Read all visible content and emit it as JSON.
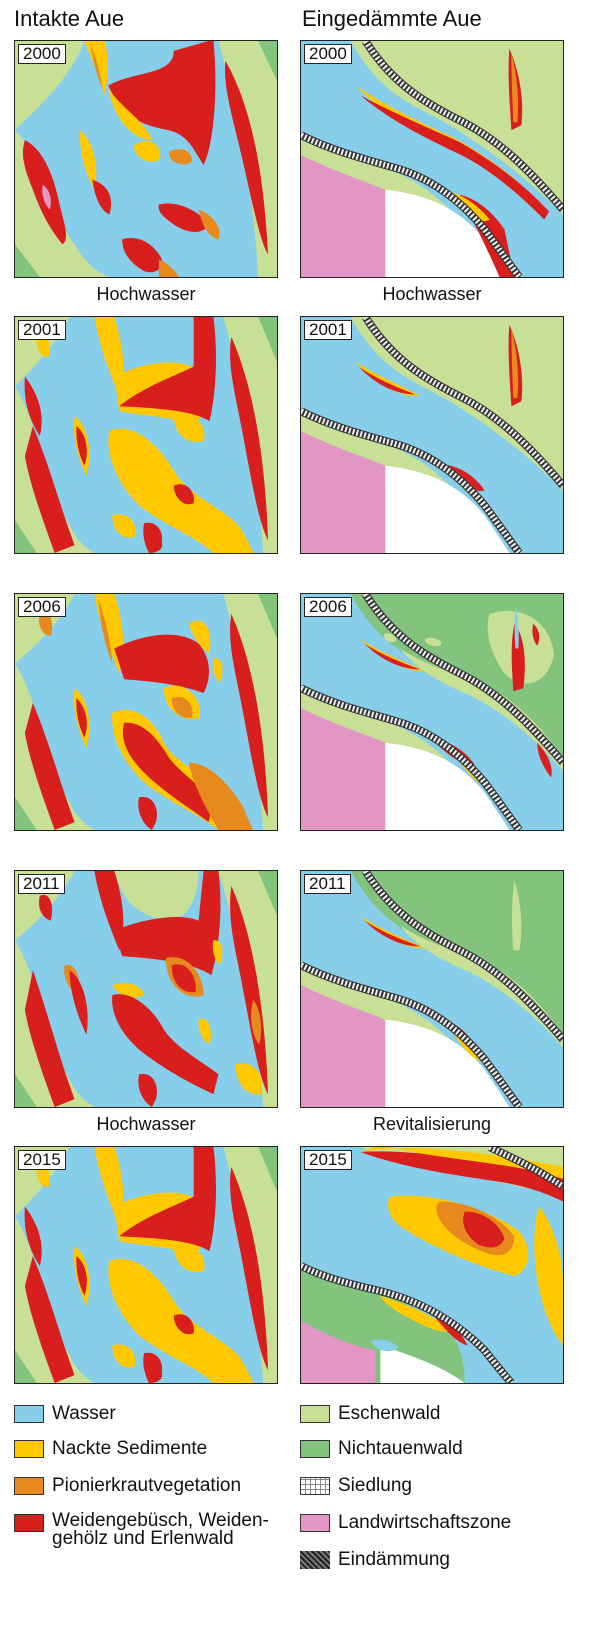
{
  "columns": {
    "left": "Intakte Aue",
    "right": "Eingedämmte Aue"
  },
  "years": [
    "2000",
    "2001",
    "2006",
    "2011",
    "2015"
  ],
  "events": {
    "left": [
      "Hochwasser",
      "",
      "",
      "Hochwasser"
    ],
    "right": [
      "Hochwasser",
      "",
      "",
      "Revitalisierung"
    ]
  },
  "colors": {
    "wasser": "#87ceeb",
    "sediment": "#ffc800",
    "pionier": "#e68a1e",
    "weide": "#d91e1e",
    "eschen": "#c8df96",
    "nichtau": "#82c37d",
    "land": "#e296c4",
    "siedlung": "#ffffff",
    "damm": "#555555"
  },
  "legend": [
    {
      "key": "wasser",
      "label": "Wasser"
    },
    {
      "key": "sediment",
      "label": "Nackte Sedimente"
    },
    {
      "key": "pionier",
      "label": "Pionierkrautvegetation"
    },
    {
      "key": "weide",
      "label": "Weidengebüsch, Weiden-\ngehölz und Erlenwald"
    },
    {
      "key": "eschen",
      "label": "Eschenwald"
    },
    {
      "key": "nichtau",
      "label": "Nichtauenwald"
    },
    {
      "key": "siedlung",
      "label": "Siedlung"
    },
    {
      "key": "land",
      "label": "Landwirtschaftszone"
    },
    {
      "key": "damm",
      "label": "Eindämmung"
    }
  ]
}
